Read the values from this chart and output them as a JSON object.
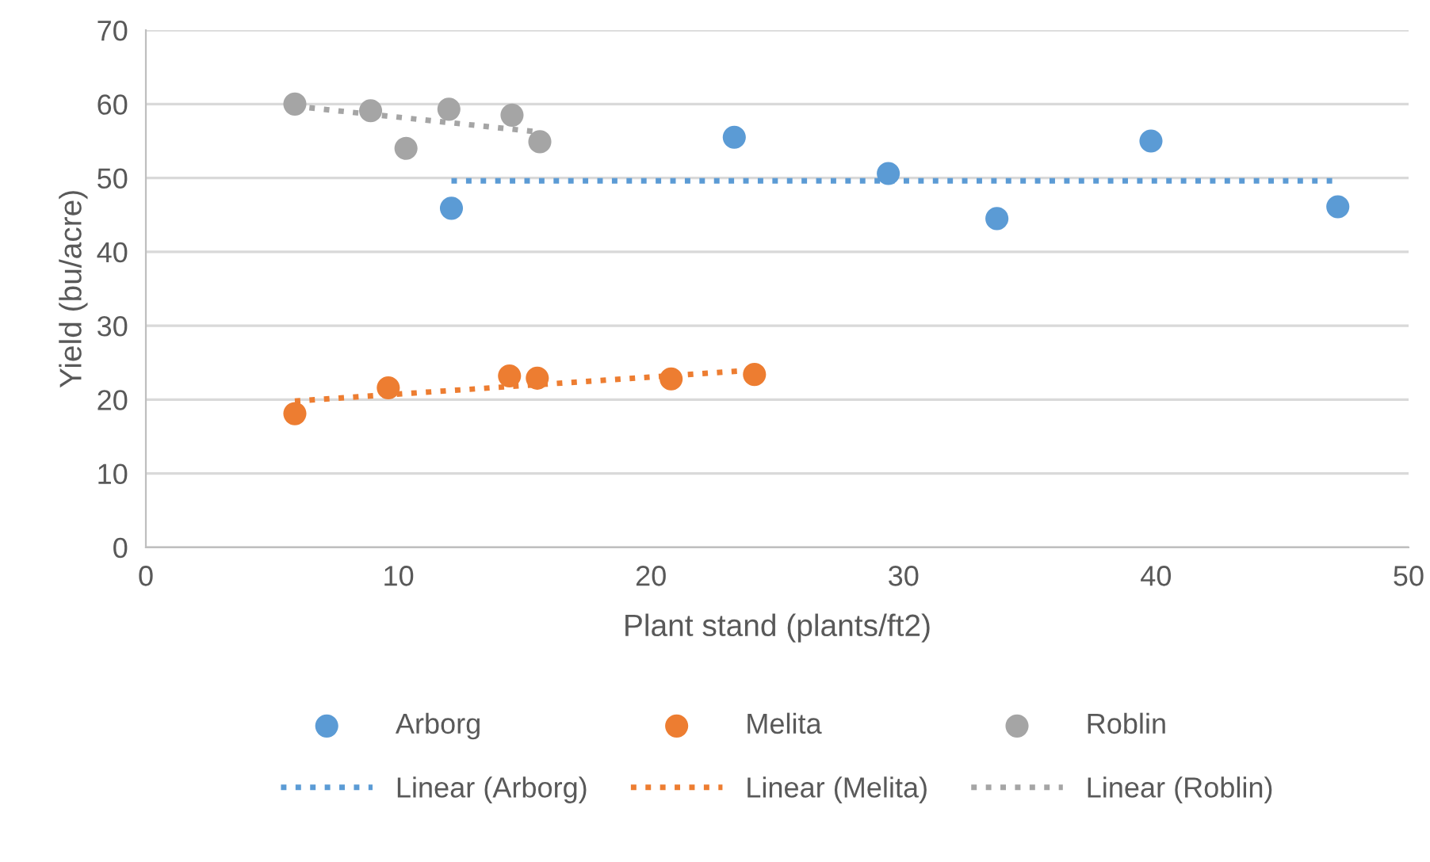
{
  "chart_data": {
    "type": "scatter",
    "xlabel": "Plant stand (plants/ft2)",
    "ylabel": "Yield (bu/acre)",
    "xlim": [
      0,
      50
    ],
    "xticks": [
      0,
      10,
      20,
      30,
      40,
      50
    ],
    "ylim": [
      0,
      70
    ],
    "yticks": [
      0,
      10,
      20,
      30,
      40,
      50,
      60,
      70
    ],
    "grid": "y",
    "legend": "bottom",
    "marker": "circle",
    "series": [
      {
        "name": "Arborg",
        "color": "#5b9bd5",
        "x": [
          12.1,
          23.3,
          29.4,
          33.7,
          39.8,
          47.2
        ],
        "values": [
          45.9,
          55.5,
          50.6,
          44.5,
          55.0,
          46.1
        ]
      },
      {
        "name": "Melita",
        "color": "#ed7d31",
        "x": [
          5.9,
          9.6,
          14.4,
          15.5,
          20.8,
          24.1
        ],
        "values": [
          18.1,
          21.6,
          23.2,
          22.9,
          22.8,
          23.4
        ]
      },
      {
        "name": "Roblin",
        "color": "#a5a5a5",
        "x": [
          5.9,
          8.9,
          10.3,
          12.0,
          14.5,
          15.6
        ],
        "values": [
          60.0,
          59.1,
          54.0,
          59.3,
          58.5,
          54.9
        ]
      },
      {
        "name": "Linear (Arborg)",
        "type": "line",
        "marker": "none",
        "line_style": "dotted",
        "color": "#5b9bd5",
        "x": [
          12.1,
          47.2
        ],
        "values": [
          49.6,
          49.6
        ]
      },
      {
        "name": "Linear (Melita)",
        "type": "line",
        "marker": "none",
        "line_style": "dotted",
        "color": "#ed7d31",
        "x": [
          5.9,
          24.1
        ],
        "values": [
          19.8,
          24.0
        ]
      },
      {
        "name": "Linear (Roblin)",
        "type": "line",
        "marker": "none",
        "line_style": "dotted",
        "color": "#a5a5a5",
        "x": [
          5.9,
          15.6
        ],
        "values": [
          59.7,
          56.2
        ]
      }
    ]
  }
}
